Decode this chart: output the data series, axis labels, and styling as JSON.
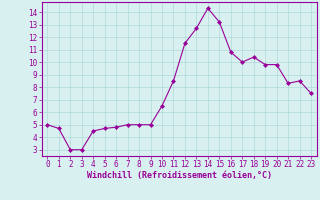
{
  "x": [
    0,
    1,
    2,
    3,
    4,
    5,
    6,
    7,
    8,
    9,
    10,
    11,
    12,
    13,
    14,
    15,
    16,
    17,
    18,
    19,
    20,
    21,
    22,
    23
  ],
  "y": [
    5.0,
    4.7,
    3.0,
    3.0,
    4.5,
    4.7,
    4.8,
    5.0,
    5.0,
    5.0,
    6.5,
    8.5,
    11.5,
    12.7,
    14.3,
    13.2,
    10.8,
    10.0,
    10.4,
    9.8,
    9.8,
    8.3,
    8.5,
    7.5
  ],
  "line_color": "#990099",
  "marker": "D",
  "marker_size": 2.0,
  "bg_color": "#d8f0f0",
  "grid_color": "#b0d8d8",
  "xlabel": "Windchill (Refroidissement éolien,°C)",
  "xlabel_color": "#990099",
  "tick_color": "#990099",
  "spine_color": "#990099",
  "ylim": [
    2.5,
    14.8
  ],
  "yticks": [
    3,
    4,
    5,
    6,
    7,
    8,
    9,
    10,
    11,
    12,
    13,
    14
  ],
  "xlim": [
    -0.5,
    23.5
  ],
  "xticks": [
    0,
    1,
    2,
    3,
    4,
    5,
    6,
    7,
    8,
    9,
    10,
    11,
    12,
    13,
    14,
    15,
    16,
    17,
    18,
    19,
    20,
    21,
    22,
    23
  ],
  "label_fontsize": 6.0,
  "tick_fontsize": 5.5
}
